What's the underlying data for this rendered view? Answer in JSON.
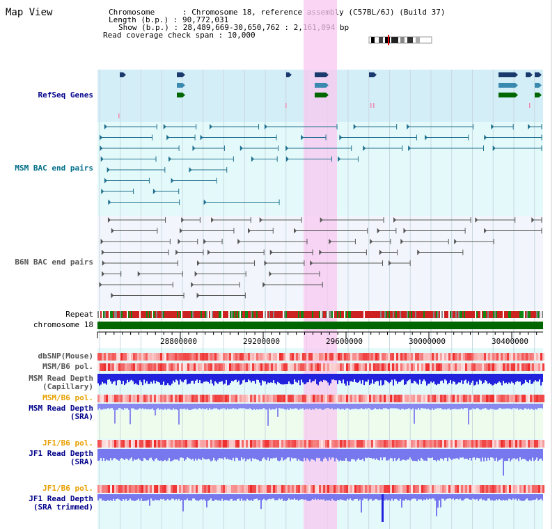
{
  "title": "Map View",
  "info": {
    "chromosome_key": "Chromosome",
    "chromosome_val": "Chromosome 18, reference assembly (C57BL/6J) (Build 37)",
    "length_key": "Length (b.p.)",
    "length_val": "90,772,031",
    "show_key": "Show (b.p.)",
    "show_val": "28,489,669-30,650,762 : 2,161,094 bp",
    "span_key": "Read coverage check span",
    "span_val": "10,000"
  },
  "tracks": {
    "refseq": "RefSeq Genes",
    "msm_bac": "MSM BAC end pairs",
    "b6n_bac": "B6N BAC end pairs",
    "repeat": "Repeat",
    "chromosome": "chromosome 18",
    "dbsnp": "dbSNP(Mouse)",
    "msm_b6_pol": "MSM/B6 pol.",
    "msm_depth_cap_1": "MSM Read Depth",
    "msm_depth_cap_2": "(Capillary)",
    "msm_b6_pol2": "MSM/B6 pol.",
    "msm_depth_sra_1": "MSM Read Depth",
    "msm_depth_sra_2": "(SRA)",
    "jf1_b6_pol": "JF1/B6 pol.",
    "jf1_depth_sra_1": "JF1 Read Depth",
    "jf1_depth_sra_2": "(SRA)",
    "jf1_b6_pol2": "JF1/B6 pol.",
    "jf1_depth_trim_1": "JF1 Read Depth",
    "jf1_depth_trim_2": "(SRA trimmed)"
  },
  "ruler": {
    "ticks": [
      "28800000",
      "29200000",
      "29600000",
      "30000000",
      "30400000"
    ]
  },
  "colors": {
    "refseq_bg": "#d6f0f8",
    "bac_bg": "#e6fafa",
    "b6n_bg": "#f4f8fc",
    "highlight": "#f8d8f0",
    "gene_dark": "#1a3a6e",
    "gene_mid": "#3a8ab0",
    "gene_green": "#006600",
    "msm_line": "#1f6f8f",
    "b6n_line": "#555555",
    "chrom": "#006600",
    "depth_blue": "#2222dd",
    "depth_light": "#8888ff"
  }
}
